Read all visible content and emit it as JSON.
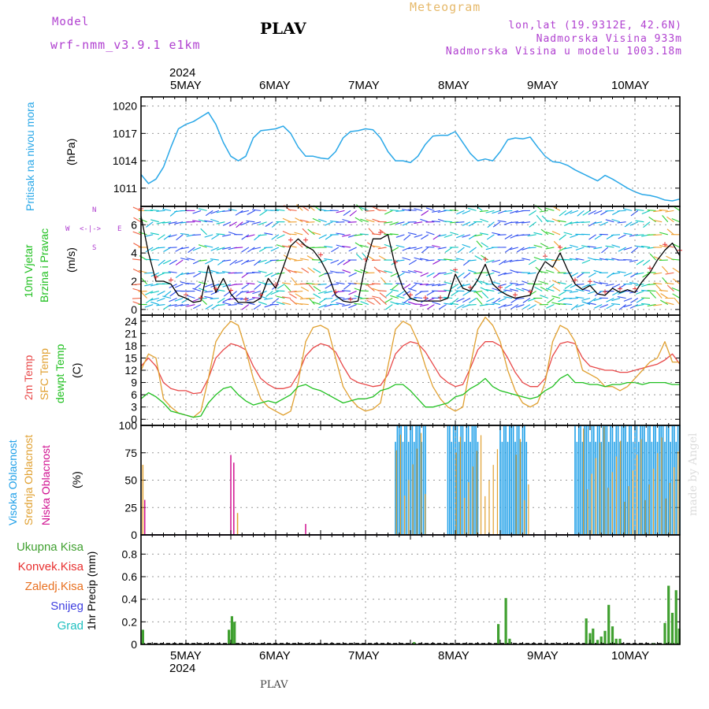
{
  "header": {
    "model_label": "Model",
    "model_name": "wrf-nmm_v3.9.1  e1km",
    "station": "PLAV",
    "meteogram": "Meteogram",
    "lonlat": "lon,lat (19.9312E, 42.6N)",
    "elevation": "Nadmorska Visina 933m",
    "model_elevation": "Nadmorska Visina u modelu 1003.18m"
  },
  "footer": {
    "station": "PLAV"
  },
  "watermark": "made by Angel",
  "time_axis": {
    "year": "2024",
    "days": [
      "5MAY",
      "6MAY",
      "7MAY",
      "8MAY",
      "9MAY",
      "10MAY"
    ]
  },
  "wind_compass": {
    "n": "N",
    "s": "S",
    "w": "W",
    "e": "E"
  },
  "panels": {
    "pressure": {
      "label": "Pritisak na nivou mora",
      "unit": "(hPa)",
      "ticks": [
        "1011",
        "1014",
        "1017",
        "1020"
      ]
    },
    "wind": {
      "label1": "10m Vjetar",
      "label2": "Brzina i Pravac",
      "unit": "(m/s)",
      "ticks": [
        "0",
        "2",
        "4",
        "6"
      ]
    },
    "temperature": {
      "label_2m": "2m Temp",
      "label_sfc": "SFC Temp",
      "label_dew": "dewpt Temp",
      "unit": "(C)",
      "ticks": [
        "0",
        "3",
        "6",
        "9",
        "12",
        "15",
        "18",
        "21",
        "24"
      ]
    },
    "cloud": {
      "label_high": "Visoka Oblacnost",
      "label_mid": "Srednja Oblacnost",
      "label_low": "Niska Oblacnost",
      "unit": "(%)",
      "ticks": [
        "0",
        "25",
        "50",
        "75",
        "100"
      ]
    },
    "precip": {
      "unit_label": "1hr Precip (mm)",
      "ticks": [
        "0",
        "0.2",
        "0.4",
        "0.6",
        "0.8"
      ],
      "legend": [
        "Ukupna Kisa",
        "Konvek.Kisa",
        "Zaledj.Kisa",
        "Snijeg",
        "Grad"
      ]
    }
  },
  "colors": {
    "pressure": "#2aa8e8",
    "wind_speed": "#000000",
    "gust": "#e83030",
    "temp2m": "#e84848",
    "sfc": "#e0a030",
    "dew": "#20c020",
    "cloud_high": "#20a0e8",
    "cloud_mid": "#e0a030",
    "cloud_low": "#d01090",
    "precip_total": "#40a030",
    "precip_conv": "#e83030",
    "precip_frz": "#e87020",
    "snow": "#4040e0",
    "grad": "#20c0c0",
    "label_purple": "#b040d0"
  },
  "chart_data": {
    "type": "line",
    "x_unit": "hours from 4 May 2024 12 UTC",
    "x_range": [
      0,
      144
    ],
    "pressure": {
      "name": "Pritisak na nivou mora",
      "ylim": [
        1009,
        1021
      ],
      "x": [
        0,
        2,
        4,
        6,
        8,
        10,
        12,
        14,
        16,
        18,
        20,
        22,
        24,
        26,
        28,
        30,
        32,
        34,
        36,
        38,
        40,
        42,
        44,
        46,
        48,
        50,
        52,
        54,
        56,
        58,
        60,
        62,
        64,
        66,
        68,
        70,
        72,
        74,
        76,
        78,
        80,
        82,
        84,
        86,
        88,
        90,
        92,
        94,
        96,
        98,
        100,
        102,
        104,
        106,
        108,
        110,
        112,
        114,
        116,
        118,
        120,
        122,
        124,
        126,
        128,
        130,
        132,
        134,
        136,
        138,
        140,
        142,
        144
      ],
      "y": [
        1012.5,
        1011.5,
        1012,
        1013.3,
        1015.5,
        1017.5,
        1018,
        1018.3,
        1018.8,
        1019.3,
        1018,
        1016,
        1014.5,
        1014,
        1014.5,
        1016.5,
        1017.3,
        1017.4,
        1017.5,
        1017.8,
        1017,
        1015.5,
        1014.5,
        1014.5,
        1014.3,
        1014.2,
        1015,
        1016.5,
        1017.2,
        1017.3,
        1017.5,
        1017.4,
        1016.5,
        1015,
        1014,
        1014,
        1013.8,
        1014.5,
        1015.8,
        1016.7,
        1016.8,
        1016.8,
        1017.2,
        1016,
        1014.8,
        1014,
        1014.2,
        1014,
        1015,
        1016.3,
        1016.5,
        1016.4,
        1016.6,
        1015.5,
        1014.5,
        1013.9,
        1013.8,
        1013.5,
        1013,
        1012.6,
        1012.2,
        1011.8,
        1012.4,
        1012,
        1011.5,
        1011,
        1010.6,
        1010.3,
        1010.2,
        1010,
        1009.7,
        1009.6,
        1009.8
      ]
    },
    "wind_speed": {
      "name": "10m Vjetar",
      "ylim": [
        -0.4,
        7.3
      ],
      "x": [
        0,
        2,
        4,
        6,
        8,
        10,
        12,
        14,
        16,
        18,
        20,
        22,
        24,
        26,
        28,
        30,
        32,
        34,
        36,
        38,
        40,
        42,
        44,
        46,
        48,
        50,
        52,
        54,
        56,
        58,
        60,
        62,
        64,
        66,
        68,
        70,
        72,
        74,
        76,
        78,
        80,
        82,
        84,
        86,
        88,
        90,
        92,
        94,
        96,
        98,
        100,
        102,
        104,
        106,
        108,
        110,
        112,
        114,
        116,
        118,
        120,
        122,
        124,
        126,
        128,
        130,
        132,
        134,
        136,
        138,
        140,
        142,
        144
      ],
      "y": [
        6.6,
        4,
        2,
        2,
        1.8,
        1,
        0.8,
        0.5,
        0.6,
        3.1,
        1.2,
        2.2,
        1.1,
        0.5,
        0.5,
        0.5,
        0.8,
        2.2,
        1.5,
        3,
        4.5,
        5,
        4.5,
        4.2,
        3.5,
        2.5,
        1,
        0.6,
        0.5,
        0.6,
        3.2,
        5,
        5,
        5.3,
        3,
        1.5,
        0.8,
        0.6,
        0.6,
        0.6,
        0.6,
        0.8,
        2.5,
        1.5,
        1.3,
        2.1,
        3.2,
        1.8,
        1.3,
        1,
        0.8,
        0.9,
        1,
        2.5,
        3.4,
        3,
        4,
        2.8,
        1.8,
        1.4,
        1.7,
        1.1,
        1,
        1.5,
        1.2,
        1.4,
        1.2,
        2,
        2.6,
        3.5,
        4.2,
        4.7,
        3.8
      ]
    },
    "temperature": {
      "ylim": [
        -1.5,
        25.5
      ],
      "x": [
        0,
        2,
        4,
        6,
        8,
        10,
        12,
        14,
        16,
        18,
        20,
        22,
        24,
        26,
        28,
        30,
        32,
        34,
        36,
        38,
        40,
        42,
        44,
        46,
        48,
        50,
        52,
        54,
        56,
        58,
        60,
        62,
        64,
        66,
        68,
        70,
        72,
        74,
        76,
        78,
        80,
        82,
        84,
        86,
        88,
        90,
        92,
        94,
        96,
        98,
        100,
        102,
        104,
        106,
        108,
        110,
        112,
        114,
        116,
        118,
        120,
        122,
        124,
        126,
        128,
        130,
        132,
        134,
        136,
        138,
        140,
        142,
        144
      ],
      "series": [
        {
          "name": "2m Temp",
          "y": [
            13,
            15,
            13,
            9,
            7.5,
            7,
            7,
            6.3,
            6.5,
            10,
            15,
            17,
            18.5,
            18,
            17,
            13,
            10,
            8.5,
            7.5,
            7.5,
            8,
            11,
            15.5,
            17.5,
            18.5,
            18,
            16.5,
            13,
            10,
            9,
            8.5,
            8,
            8.3,
            11,
            16,
            18,
            19,
            18.5,
            16.5,
            13.5,
            10.5,
            9,
            8,
            8.5,
            12.5,
            17,
            19,
            19,
            18,
            15,
            11.5,
            9,
            8,
            8,
            10,
            15.5,
            18.5,
            19,
            18.5,
            15,
            13,
            12.5,
            12,
            12,
            11.5,
            11.5,
            12,
            12.5,
            13,
            13.5,
            14.5,
            16,
            13.5
          ]
        },
        {
          "name": "SFC Temp",
          "y": [
            12,
            16,
            15,
            5,
            3,
            1.5,
            1,
            0.5,
            2,
            10,
            19,
            22,
            24,
            23,
            17,
            10,
            5,
            3,
            2,
            1,
            2,
            9,
            19,
            22.5,
            23,
            22,
            15,
            8,
            5,
            3,
            2,
            2.5,
            4,
            13,
            22,
            24,
            23,
            19,
            13,
            8,
            5,
            3,
            2,
            3,
            13,
            22,
            25,
            23,
            19,
            12,
            7,
            4,
            3,
            4,
            9,
            19,
            23,
            22,
            19,
            12,
            11,
            10,
            8,
            8,
            7,
            8,
            10,
            12,
            14,
            15,
            19,
            14,
            14
          ]
        },
        {
          "name": "dewpt Temp",
          "y": [
            5,
            6.5,
            5.5,
            4,
            2,
            1.5,
            1,
            0.5,
            0.8,
            4,
            6,
            7.5,
            8,
            6,
            4.5,
            3.5,
            4,
            4.5,
            4,
            5,
            6,
            8,
            8.5,
            7.5,
            7,
            6,
            5,
            4,
            4.5,
            5,
            5,
            5.5,
            7,
            7.5,
            8.5,
            8.5,
            7,
            5,
            3,
            3,
            3.5,
            4,
            5.5,
            6,
            7.5,
            8.5,
            10,
            8,
            7,
            6.5,
            6,
            5.5,
            5,
            5.5,
            7,
            8,
            10,
            11,
            9,
            9,
            8.5,
            8.5,
            8,
            8.5,
            8.5,
            9,
            9,
            8.5,
            9,
            9,
            9,
            8.5,
            8.5
          ]
        }
      ]
    },
    "cloud": {
      "ylim": [
        0,
        100
      ],
      "high_cover_blocks_hours": [
        [
          68,
          76
        ],
        [
          82,
          90
        ],
        [
          96,
          103
        ],
        [
          116,
          144
        ]
      ],
      "mid_cover_blocks_hours": [
        [
          68,
          77
        ],
        [
          84,
          96
        ],
        [
          100,
          104
        ],
        [
          118,
          144
        ]
      ],
      "low_spikes": [
        {
          "x": 1,
          "y": 32
        },
        {
          "x": 24,
          "y": 73
        },
        {
          "x": 24.8,
          "y": 66
        },
        {
          "x": 44,
          "y": 10
        }
      ],
      "mid_spikes": [
        {
          "x": 0.5,
          "y": 64
        },
        {
          "x": 25.8,
          "y": 20
        }
      ]
    },
    "precip": {
      "ylim": [
        0,
        0.97
      ],
      "total": [
        {
          "x": 0.5,
          "y": 0.13
        },
        {
          "x": 23.5,
          "y": 0.13
        },
        {
          "x": 24.3,
          "y": 0.25
        },
        {
          "x": 25,
          "y": 0.2
        },
        {
          "x": 73,
          "y": 0.02
        },
        {
          "x": 95.5,
          "y": 0.18
        },
        {
          "x": 97.5,
          "y": 0.41
        },
        {
          "x": 98.5,
          "y": 0.05
        },
        {
          "x": 119,
          "y": 0.23
        },
        {
          "x": 120,
          "y": 0.1
        },
        {
          "x": 120.8,
          "y": 0.14
        },
        {
          "x": 122,
          "y": 0.04
        },
        {
          "x": 123,
          "y": 0.07
        },
        {
          "x": 124,
          "y": 0.12
        },
        {
          "x": 125,
          "y": 0.35
        },
        {
          "x": 126,
          "y": 0.16
        },
        {
          "x": 127,
          "y": 0.05
        },
        {
          "x": 128,
          "y": 0.05
        },
        {
          "x": 137,
          "y": 0.01
        },
        {
          "x": 140,
          "y": 0.19
        },
        {
          "x": 141,
          "y": 0.52
        },
        {
          "x": 142,
          "y": 0.28
        },
        {
          "x": 143,
          "y": 0.48
        },
        {
          "x": 143.8,
          "y": 0.14
        }
      ]
    }
  }
}
